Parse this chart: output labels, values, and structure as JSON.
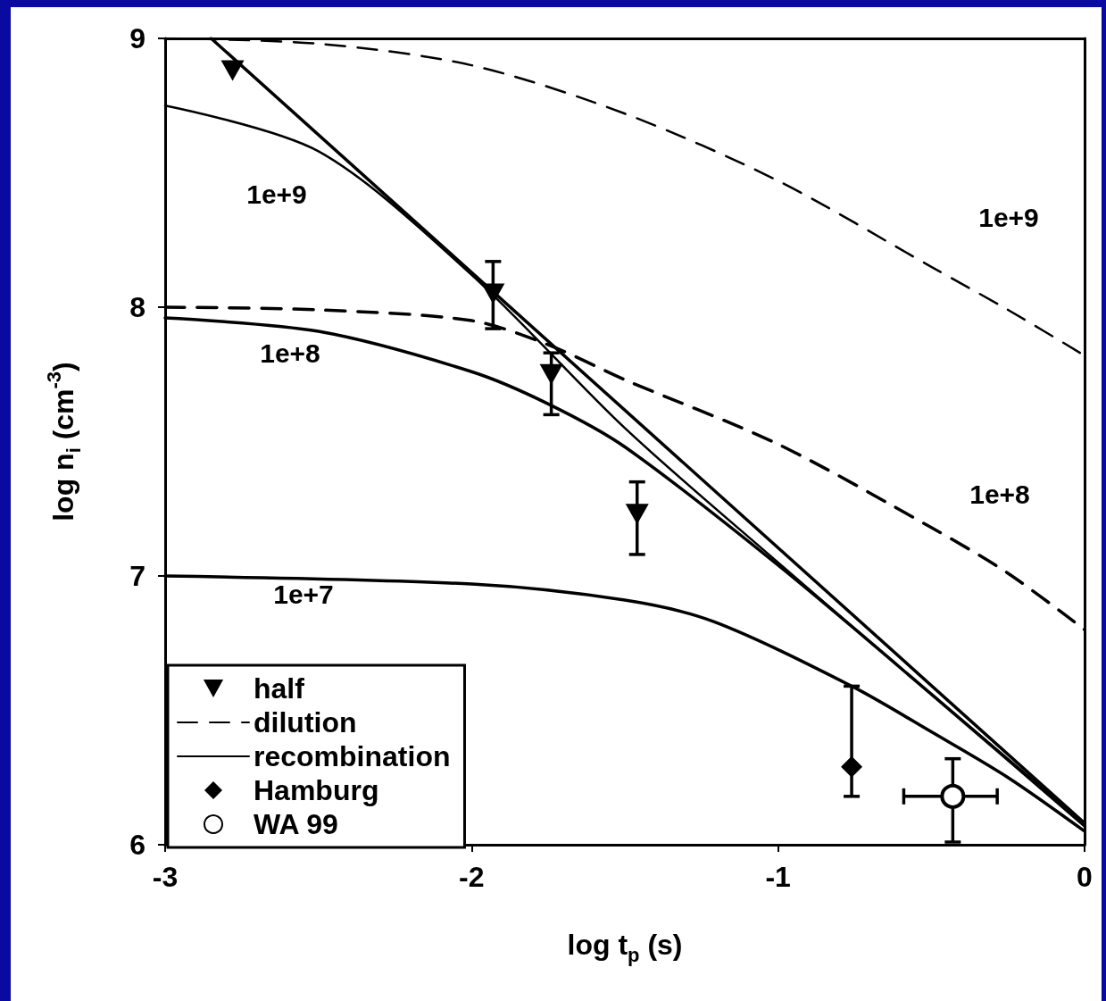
{
  "chart_data": {
    "type": "line",
    "xlabel": "log t$_{p}$ (s)",
    "ylabel": "log n$_{i}$ (cm$^{-3}$)",
    "xlim": [
      -3,
      0
    ],
    "xticks": [
      -3,
      -2,
      -1,
      0
    ],
    "ylim": [
      6,
      9
    ],
    "yticks": [
      6,
      7,
      8,
      9
    ],
    "grid": false,
    "legend": "bottom left",
    "series": [
      {
        "name": "half",
        "type": "scatter",
        "marker": "triangle",
        "color": "#000000",
        "x": [
          -2.78,
          -1.93,
          -1.74,
          -1.46
        ],
        "values": [
          8.88,
          8.05,
          7.75,
          7.23
        ],
        "errors": [
          null,
          [
            7.92,
            8.17
          ],
          [
            7.6,
            7.83
          ],
          [
            7.08,
            7.35
          ]
        ]
      },
      {
        "name": "dilution",
        "line_style": "dashed",
        "marker": "none",
        "color": "#000000",
        "x": [
          -3,
          -2.5,
          -2,
          -1.5,
          -1,
          -0.5,
          -0.25,
          0
        ],
        "values": [
          9,
          8.98,
          8.9,
          8.72,
          8.47,
          8.15,
          7.99,
          7.82
        ]
      },
      {
        "line_style": "dashed",
        "marker": "none",
        "color": "#000000",
        "x": [
          -3,
          -2.5,
          -2,
          -1.75,
          -1.5,
          -1,
          -0.5,
          -0.25,
          0
        ],
        "values": [
          8,
          7.99,
          7.95,
          7.86,
          7.73,
          7.49,
          7.18,
          7.01,
          6.8
        ]
      },
      {
        "name": "recombination",
        "line_style": "solid",
        "marker": "none",
        "color": "#000000",
        "x": [
          -3,
          -2.5,
          -2,
          -1.5,
          -1,
          -0.5,
          0
        ],
        "values": [
          8.75,
          8.58,
          8.12,
          7.55,
          7.05,
          6.56,
          6.08
        ]
      },
      {
        "line_style": "solid",
        "marker": "none",
        "color": "#000000",
        "x": [
          -3,
          -2.5,
          -2,
          -1.75,
          -1.5,
          -1,
          -0.5,
          0
        ],
        "values": [
          7.96,
          7.91,
          7.76,
          7.64,
          7.48,
          7.04,
          6.56,
          6.07
        ]
      },
      {
        "line_style": "solid",
        "marker": "none",
        "color": "#000000",
        "x": [
          -3,
          -2,
          -1.5,
          -1.21,
          -0.76,
          -0.5,
          -0.25,
          0
        ],
        "values": [
          7,
          6.97,
          6.91,
          6.83,
          6.59,
          6.42,
          6.25,
          6.05
        ]
      },
      {
        "line_style": "solid",
        "marker": "none",
        "color": "#000000",
        "x": [
          -2.85,
          0
        ],
        "values": [
          9,
          6.08
        ]
      },
      {
        "name": "Hamburg",
        "type": "scatter",
        "marker": "diamond",
        "color": "#000000",
        "x": [
          -0.76
        ],
        "values": [
          6.29
        ],
        "errors": [
          [
            6.18,
            6.59
          ]
        ]
      },
      {
        "name": "WA 99",
        "type": "scatter",
        "marker": "circle",
        "color": "#000000",
        "x": [
          -0.43
        ],
        "values": [
          6.18
        ],
        "errors": [
          [
            6.01,
            6.32
          ]
        ],
        "xerrors": [
          [
            -0.59,
            -0.285
          ]
        ]
      }
    ],
    "annotations": [
      "1e+9",
      "1e+8",
      "1e+7",
      "1e+9",
      "1e+8"
    ]
  }
}
